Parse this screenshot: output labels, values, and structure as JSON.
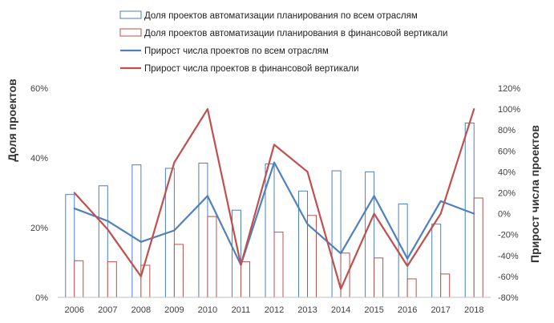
{
  "chart_data": {
    "type": "bar+line",
    "categories": [
      "2006",
      "2007",
      "2008",
      "2009",
      "2010",
      "2011",
      "2012",
      "2013",
      "2014",
      "2015",
      "2016",
      "2017",
      "2018"
    ],
    "y_left": {
      "label": "Доля проектов",
      "min": 0,
      "max": 60,
      "ticks": [
        0,
        20,
        40,
        60
      ],
      "tick_labels": [
        "0%",
        "20%",
        "40%",
        "60%"
      ]
    },
    "y_right": {
      "label": "Прирост числа проектов",
      "min": -80,
      "max": 120,
      "ticks": [
        -80,
        -60,
        -40,
        -20,
        0,
        20,
        40,
        60,
        80,
        100,
        120
      ],
      "tick_labels": [
        "-80%",
        "-60%",
        "-40%",
        "-20%",
        "0%",
        "20%",
        "40%",
        "60%",
        "80%",
        "100%",
        "120%"
      ]
    },
    "grid": false,
    "legend_position": "top",
    "series": [
      {
        "name": "Доля проектов автоматизации планирования по всем отраслям",
        "kind": "bar",
        "axis": "left",
        "style": "hollow",
        "color": "#4e7fbd",
        "values": [
          29.5,
          32,
          38,
          37,
          38.5,
          25,
          38.3,
          30.5,
          36.3,
          36,
          26.8,
          21,
          50
        ]
      },
      {
        "name": "Доля проектов автоматизации планирования в финансовой вертикали",
        "kind": "bar",
        "axis": "left",
        "style": "hollow",
        "color": "#b8504b",
        "values": [
          10.5,
          10.2,
          9.2,
          15.2,
          23.2,
          10.2,
          18.7,
          23.5,
          12.7,
          11.3,
          5.3,
          6.7,
          28.5
        ]
      },
      {
        "name": "Прирост числа проектов по всем отраслям",
        "kind": "line",
        "axis": "right",
        "color": "#4f81bd",
        "values": [
          5,
          -7,
          -27,
          -16,
          17,
          -49,
          49,
          -10,
          -38,
          17,
          -43,
          12,
          0
        ]
      },
      {
        "name": "Прирост числа проектов в финансовой вертикали",
        "kind": "line",
        "axis": "right",
        "color": "#c0504d",
        "values": [
          20,
          -15,
          -60,
          49,
          100,
          -49,
          66,
          40,
          -72,
          0,
          -50,
          0,
          100
        ]
      }
    ]
  }
}
